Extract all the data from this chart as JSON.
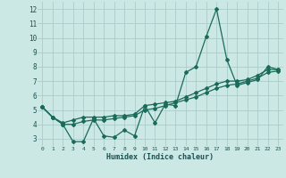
{
  "xlabel": "Humidex (Indice chaleur)",
  "bg_color": "#cce8e4",
  "grid_color": "#aacccc",
  "line_color": "#1a6b5a",
  "xlim": [
    -0.5,
    23.5
  ],
  "ylim": [
    2.5,
    12.5
  ],
  "yticks": [
    3,
    4,
    5,
    6,
    7,
    8,
    9,
    10,
    11,
    12
  ],
  "xticks": [
    0,
    1,
    2,
    3,
    4,
    5,
    6,
    7,
    8,
    9,
    10,
    11,
    12,
    13,
    14,
    15,
    16,
    17,
    18,
    19,
    20,
    21,
    22,
    23
  ],
  "line1_x": [
    0,
    1,
    2,
    3,
    4,
    5,
    6,
    7,
    8,
    9,
    10,
    11,
    12,
    13,
    14,
    15,
    16,
    17,
    18,
    19,
    20,
    21,
    22,
    23
  ],
  "line1_y": [
    5.2,
    4.5,
    4.0,
    2.8,
    2.8,
    4.4,
    3.2,
    3.1,
    3.6,
    3.2,
    5.3,
    4.1,
    5.4,
    5.3,
    7.6,
    8.0,
    10.1,
    12.0,
    8.5,
    6.7,
    6.9,
    7.1,
    8.0,
    7.8
  ],
  "line2_x": [
    0,
    1,
    2,
    3,
    4,
    5,
    6,
    7,
    8,
    9,
    10,
    11,
    12,
    13,
    14,
    15,
    16,
    17,
    18,
    19,
    20,
    21,
    22,
    23
  ],
  "line2_y": [
    5.2,
    4.5,
    4.1,
    4.3,
    4.5,
    4.5,
    4.5,
    4.6,
    4.6,
    4.7,
    5.3,
    5.4,
    5.5,
    5.6,
    5.9,
    6.2,
    6.5,
    6.8,
    7.0,
    7.0,
    7.1,
    7.4,
    7.8,
    7.8
  ],
  "line3_x": [
    0,
    1,
    2,
    3,
    4,
    5,
    6,
    7,
    8,
    9,
    10,
    11,
    12,
    13,
    14,
    15,
    16,
    17,
    18,
    19,
    20,
    21,
    22,
    23
  ],
  "line3_y": [
    5.2,
    4.5,
    4.0,
    4.0,
    4.2,
    4.3,
    4.3,
    4.4,
    4.5,
    4.6,
    5.0,
    5.1,
    5.3,
    5.5,
    5.7,
    5.9,
    6.2,
    6.5,
    6.7,
    6.8,
    7.0,
    7.2,
    7.6,
    7.7
  ]
}
